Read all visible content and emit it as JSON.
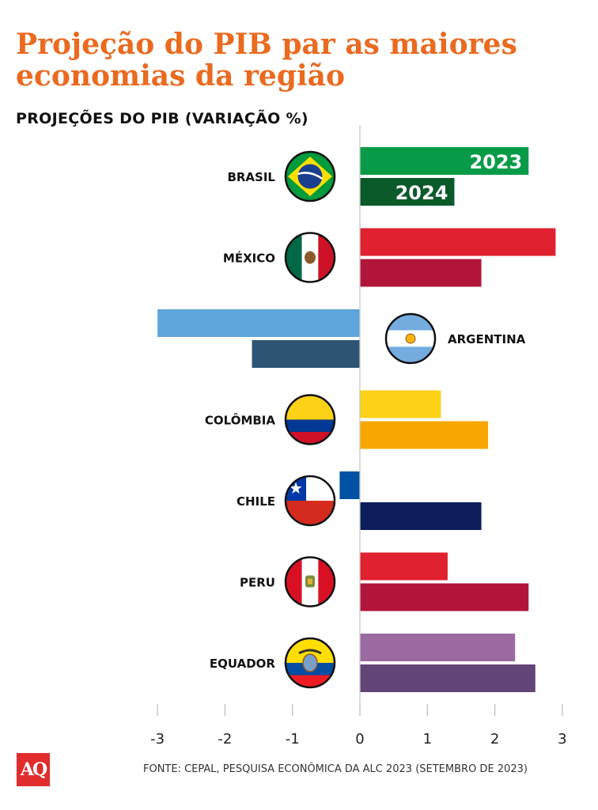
{
  "title": "Projeção do PIB par as maiores economias da região",
  "subtitle": "PROJEÇÕES DO PIB (VARIAÇÃO %)",
  "logo": "AQ",
  "source": "FONTE: CEPAL, PESQUISA ECONÔMICA DA ALC 2023 (SETEMBRO DE 2023)",
  "chart_data": {
    "type": "bar",
    "orientation": "horizontal",
    "title": "PROJEÇÕES DO PIB (VARIAÇÃO %)",
    "xlim": [
      -3,
      3
    ],
    "xticks": [
      "-3",
      "-2",
      "-1",
      "0",
      "1",
      "2",
      "3"
    ],
    "series_labels": [
      "2023",
      "2024"
    ],
    "countries": [
      {
        "name": "BRASIL",
        "flag": "brazil-flag-icon",
        "v2023": 2.5,
        "v2024": 1.4,
        "c2023": "#079b48",
        "c2024": "#0a5a2a"
      },
      {
        "name": "MÉXICO",
        "flag": "mexico-flag-icon",
        "v2023": 2.9,
        "v2024": 1.8,
        "c2023": "#e0212f",
        "c2024": "#b1163a"
      },
      {
        "name": "ARGENTINA",
        "flag": "argentina-flag-icon",
        "v2023": -3.0,
        "v2024": -1.6,
        "c2023": "#5ea5dc",
        "c2024": "#2e5473"
      },
      {
        "name": "COLÔMBIA",
        "flag": "colombia-flag-icon",
        "v2023": 1.2,
        "v2024": 1.9,
        "c2023": "#fcd116",
        "c2024": "#f6a800"
      },
      {
        "name": "CHILE",
        "flag": "chile-flag-icon",
        "v2023": -0.3,
        "v2024": 1.8,
        "c2023": "#0052a5",
        "c2024": "#0d1d5e"
      },
      {
        "name": "PERU",
        "flag": "peru-flag-icon",
        "v2023": 1.3,
        "v2024": 2.5,
        "c2023": "#e0212f",
        "c2024": "#b1163a"
      },
      {
        "name": "EQUADOR",
        "flag": "ecuador-flag-icon",
        "v2023": 2.3,
        "v2024": 2.6,
        "c2023": "#9a6aa0",
        "c2024": "#634477"
      }
    ]
  }
}
